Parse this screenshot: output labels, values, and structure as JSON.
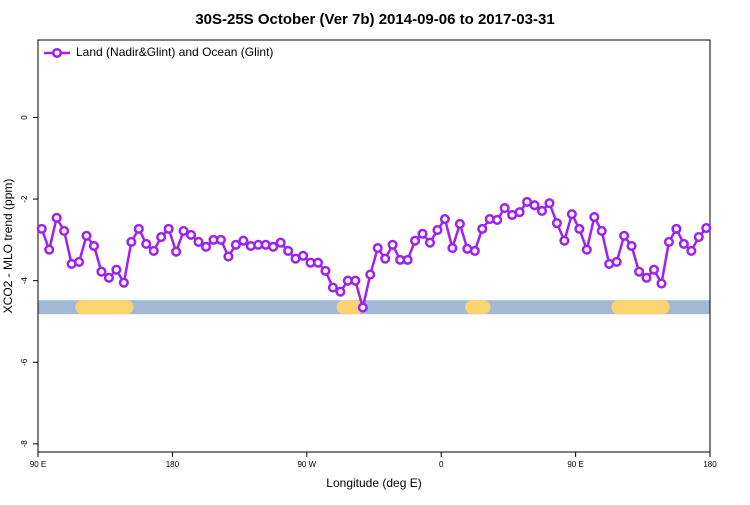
{
  "chart_data": {
    "type": "line",
    "title": "30S-25S October (Ver 7b)   2014-09-06 to 2017-03-31",
    "xlabel": "Longitude (deg E)",
    "ylabel": "XCO2 - MLO trend (ppm)",
    "xlim": [
      90,
      540
    ],
    "ylim": [
      -8.2,
      1.9
    ],
    "xticks": [
      {
        "value": 90,
        "label": "90 E"
      },
      180,
      {
        "value": 270,
        "label": "90 W"
      },
      {
        "value": 360,
        "label": "0"
      },
      {
        "value": 450,
        "label": "90 E"
      },
      {
        "value": 540,
        "label": "180"
      }
    ],
    "yticks": [
      0,
      -2,
      -4,
      -6,
      -8
    ],
    "legend": "top-left",
    "x": [
      92.5,
      97.5,
      102.5,
      107.5,
      112.5,
      117.5,
      122.5,
      127.5,
      132.5,
      137.5,
      142.5,
      147.5,
      152.5,
      157.5,
      162.5,
      167.5,
      172.5,
      177.5,
      182.5,
      187.5,
      192.5,
      197.5,
      202.5,
      207.5,
      212.5,
      217.5,
      222.5,
      227.5,
      232.5,
      237.5,
      242.5,
      247.5,
      252.5,
      257.5,
      262.5,
      267.5,
      272.5,
      277.5,
      282.5,
      287.5,
      292.5,
      297.5,
      302.5,
      307.5,
      312.5,
      317.5,
      322.5,
      327.5,
      332.5,
      337.5,
      342.5,
      347.5,
      352.5,
      357.5,
      362.5,
      367.5,
      372.5,
      377.5,
      382.5,
      387.5,
      392.5,
      397.5,
      402.5,
      407.5,
      412.5,
      417.5,
      422.5,
      427.5,
      432.5,
      437.5,
      442.5,
      447.5,
      452.5,
      457.5,
      462.5,
      467.5,
      472.5,
      477.5,
      482.5,
      487.5,
      492.5,
      497.5,
      502.5,
      507.5,
      512.5,
      517.5,
      522.5,
      527.5,
      532.5,
      537.5
    ],
    "series": [
      {
        "name": "Land (Nadir&Glint) and Ocean (Glint)",
        "color": "#a020f0",
        "values": [
          -2.73,
          -3.24,
          -2.46,
          -2.78,
          -3.59,
          -3.54,
          -2.9,
          -3.15,
          -3.78,
          -3.93,
          -3.73,
          -4.05,
          -3.05,
          -2.73,
          -3.1,
          -3.27,
          -2.93,
          -2.73,
          -3.29,
          -2.78,
          -2.88,
          -3.05,
          -3.17,
          -3.0,
          -3.0,
          -3.41,
          -3.12,
          -3.02,
          -3.15,
          -3.12,
          -3.12,
          -3.17,
          -3.07,
          -3.27,
          -3.46,
          -3.39,
          -3.56,
          -3.56,
          -3.76,
          -4.17,
          -4.27,
          -4.0,
          -4.0,
          -4.66,
          -3.85,
          -3.2,
          -3.46,
          -3.12,
          -3.49,
          -3.49,
          -3.02,
          -2.85,
          -3.07,
          -2.76,
          -2.49,
          -3.2,
          -2.61,
          -3.22,
          -3.27,
          -2.73,
          -2.49,
          -2.51,
          -2.22,
          -2.39,
          -2.32,
          -2.07,
          -2.15,
          -2.29,
          -2.1,
          -2.59,
          -3.02,
          -2.37,
          -2.73,
          -3.24,
          -2.44,
          -2.78,
          -3.59,
          -3.54,
          -2.9,
          -3.15,
          -3.78,
          -3.93,
          -3.73,
          -4.07,
          -3.05,
          -2.73,
          -3.1,
          -3.27,
          -2.93,
          -2.71
        ]
      }
    ],
    "strip": {
      "y": -4.65,
      "color": "#a2b9d6",
      "land_color": "#fbd470",
      "land": [
        [
          115,
          154
        ],
        [
          290,
          308
        ],
        [
          376,
          393
        ],
        [
          474,
          513
        ]
      ]
    }
  }
}
